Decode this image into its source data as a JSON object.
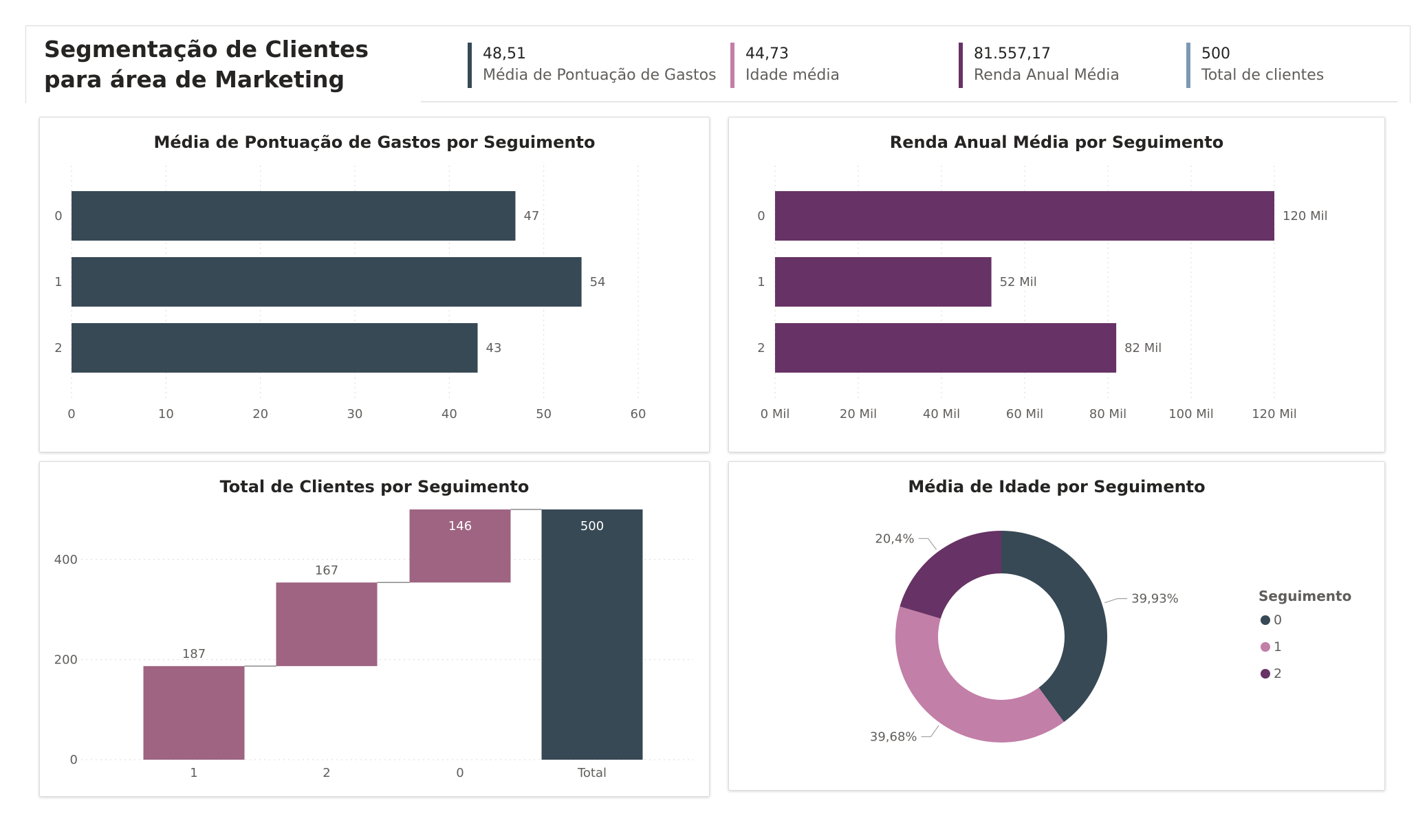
{
  "page": {
    "title": "Segmentação de Clientes para área de Marketing"
  },
  "kpis": [
    {
      "value": "48,51",
      "label": "Média de Pontuação de Gastos",
      "color": "#374955"
    },
    {
      "value": "44,73",
      "label": "Idade média",
      "color": "#c27fa8"
    },
    {
      "value": "81.557,17",
      "label": "Renda Anual Média",
      "color": "#673265"
    },
    {
      "value": "500",
      "label": "Total de clientes",
      "color": "#7c99b3"
    }
  ],
  "colors": {
    "segment_0": "#374955",
    "segment_1": "#c27fa8",
    "segment_2": "#673265",
    "waterfall_step": "#9e6482",
    "income_bar": "#673265"
  },
  "chart_data": [
    {
      "id": "spending",
      "type": "bar",
      "orientation": "horizontal",
      "title": "Média de Pontuação de Gastos por Seguimento",
      "categories": [
        "0",
        "1",
        "2"
      ],
      "values": [
        47,
        54,
        43
      ],
      "data_labels": [
        "47",
        "54",
        "43"
      ],
      "xlim": [
        0,
        60
      ],
      "xticks": [
        0,
        10,
        20,
        30,
        40,
        50,
        60
      ],
      "xtick_labels": [
        "0",
        "10",
        "20",
        "30",
        "40",
        "50",
        "60"
      ],
      "grid": true,
      "color": "#374955"
    },
    {
      "id": "income",
      "type": "bar",
      "orientation": "horizontal",
      "title": "Renda Anual Média por Seguimento",
      "categories": [
        "0",
        "1",
        "2"
      ],
      "values": [
        120000,
        52000,
        82000
      ],
      "data_labels": [
        "120 Mil",
        "52 Mil",
        "82 Mil"
      ],
      "xlim": [
        0,
        120000
      ],
      "xticks": [
        0,
        20000,
        40000,
        60000,
        80000,
        100000,
        120000
      ],
      "xtick_labels": [
        "0 Mil",
        "20 Mil",
        "40 Mil",
        "60 Mil",
        "80 Mil",
        "100 Mil",
        "120 Mil"
      ],
      "grid": true,
      "color": "#673265"
    },
    {
      "id": "customers",
      "type": "bar",
      "subtype": "waterfall",
      "title": "Total de Clientes por Seguimento",
      "categories": [
        "1",
        "2",
        "0",
        "Total"
      ],
      "values": [
        187,
        167,
        146,
        500
      ],
      "data_labels": [
        "187",
        "167",
        "146",
        "500"
      ],
      "ylim": [
        0,
        500
      ],
      "yticks": [
        0,
        200,
        400
      ],
      "ytick_labels": [
        "0",
        "200",
        "400"
      ],
      "grid": true,
      "colors": {
        "step": "#9e6482",
        "total": "#374955"
      }
    },
    {
      "id": "age",
      "type": "pie",
      "subtype": "donut",
      "title": "Média de Idade por Seguimento",
      "categories": [
        "0",
        "1",
        "2"
      ],
      "values": [
        39.93,
        39.68,
        20.4
      ],
      "data_labels": [
        "39,93%",
        "39,68%",
        "20,4%"
      ],
      "colors": [
        "#374955",
        "#c27fa8",
        "#673265"
      ],
      "legend": {
        "title": "Seguimento",
        "position": "right",
        "entries": [
          "0",
          "1",
          "2"
        ]
      }
    }
  ]
}
